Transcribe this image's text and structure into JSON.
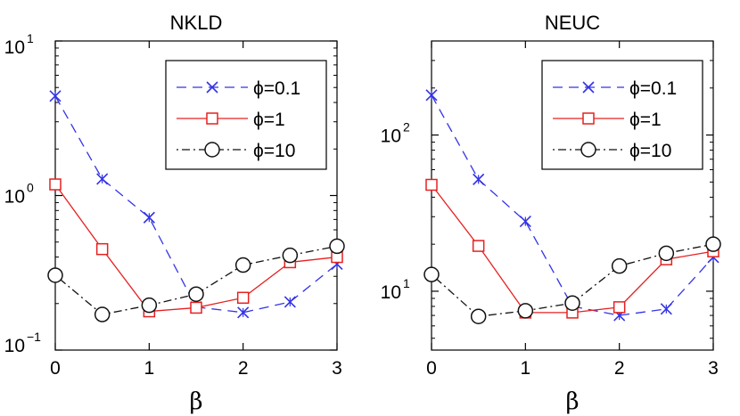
{
  "chart_data": [
    {
      "type": "line",
      "title": "NKLD",
      "xlabel": "β",
      "ylabel": "",
      "yscale": "log",
      "xlim": [
        0,
        3
      ],
      "ylim": [
        0.1,
        10
      ],
      "x": [
        0,
        0.5,
        1,
        1.5,
        2,
        2.5,
        3
      ],
      "xticks": [
        "0",
        "1",
        "2",
        "3"
      ],
      "yticks": [
        {
          "base": "10",
          "exp": "1",
          "value": 10
        },
        {
          "base": "10",
          "exp": "0",
          "value": 1
        },
        {
          "base": "10",
          "exp": "−1",
          "value": 0.1
        }
      ],
      "legend_position": "top-right",
      "series": [
        {
          "name": "ϕ=0.1",
          "values": [
            4.4,
            1.28,
            0.72,
            0.19,
            0.175,
            0.205,
            0.36
          ],
          "color": "#3333e6",
          "marker": "x",
          "dash": "dashed"
        },
        {
          "name": "ϕ=1",
          "values": [
            1.18,
            0.45,
            0.178,
            0.188,
            0.218,
            0.37,
            0.4
          ],
          "color": "#e62020",
          "marker": "square",
          "dash": "solid"
        },
        {
          "name": "ϕ=10",
          "values": [
            0.305,
            0.17,
            0.195,
            0.23,
            0.355,
            0.41,
            0.47
          ],
          "color": "#111111",
          "marker": "circle",
          "dash": "dashdot"
        }
      ]
    },
    {
      "type": "line",
      "title": "NEUC",
      "xlabel": "β",
      "ylabel": "",
      "yscale": "log",
      "xlim": [
        0,
        3
      ],
      "ylim": [
        4.2,
        400
      ],
      "x": [
        0,
        0.5,
        1,
        1.5,
        2,
        2.5,
        3
      ],
      "xticks": [
        "0",
        "1",
        "2",
        "3"
      ],
      "yticks": [
        {
          "base": "10",
          "exp": "2",
          "value": 100
        },
        {
          "base": "10",
          "exp": "1",
          "value": 10
        }
      ],
      "legend_position": "top-right",
      "series": [
        {
          "name": "ϕ=0.1",
          "values": [
            180,
            52,
            28,
            8.0,
            7.0,
            7.7,
            16.5
          ],
          "color": "#3333e6",
          "marker": "x",
          "dash": "dashed"
        },
        {
          "name": "ϕ=1",
          "values": [
            48,
            19.5,
            7.3,
            7.3,
            7.9,
            16,
            18
          ],
          "color": "#e62020",
          "marker": "square",
          "dash": "solid"
        },
        {
          "name": "ϕ=10",
          "values": [
            12.8,
            6.9,
            7.5,
            8.4,
            14.5,
            17.5,
            20
          ],
          "color": "#111111",
          "marker": "circle",
          "dash": "dashdot"
        }
      ]
    }
  ]
}
